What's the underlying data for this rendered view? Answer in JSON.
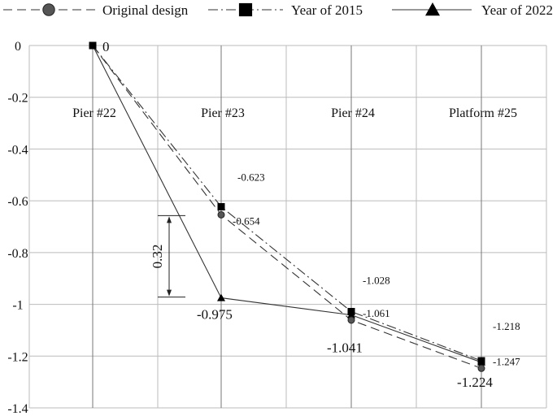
{
  "chart_data": {
    "type": "line",
    "categories": [
      "Pier #22",
      "Pier #23",
      "Pier #24",
      "Platform #25"
    ],
    "ylim": [
      -1.4,
      0
    ],
    "yticks": [
      "0",
      "-0.2",
      "-0.4",
      "-0.6",
      "-0.8",
      "-1",
      "-1.2",
      "-1.4"
    ],
    "ytick_values": [
      0,
      -0.2,
      -0.4,
      -0.6,
      -0.8,
      -1,
      -1.2,
      -1.4
    ],
    "grid": true,
    "legend_position": "top",
    "series": [
      {
        "name": "Original design",
        "marker": "circle",
        "dash": "long-dash",
        "values": [
          0,
          -0.654,
          -1.061,
          -1.247
        ],
        "labels": [
          "",
          "-0.654",
          "-1.061",
          "-1.247"
        ]
      },
      {
        "name": "Year of 2015",
        "marker": "square",
        "dash": "dash-dot",
        "values": [
          0,
          -0.623,
          -1.028,
          -1.218
        ],
        "labels": [
          "",
          "-0.623",
          "-1.028",
          "-1.218"
        ]
      },
      {
        "name": "Year of 2022",
        "marker": "triangle",
        "dash": "solid",
        "values": [
          0,
          -0.975,
          -1.041,
          -1.224
        ],
        "labels": [
          "0",
          "-0.975",
          "-1.041",
          "-1.224"
        ]
      }
    ],
    "annotation": {
      "text": "0.32",
      "from": -0.654,
      "to": -0.975
    }
  }
}
